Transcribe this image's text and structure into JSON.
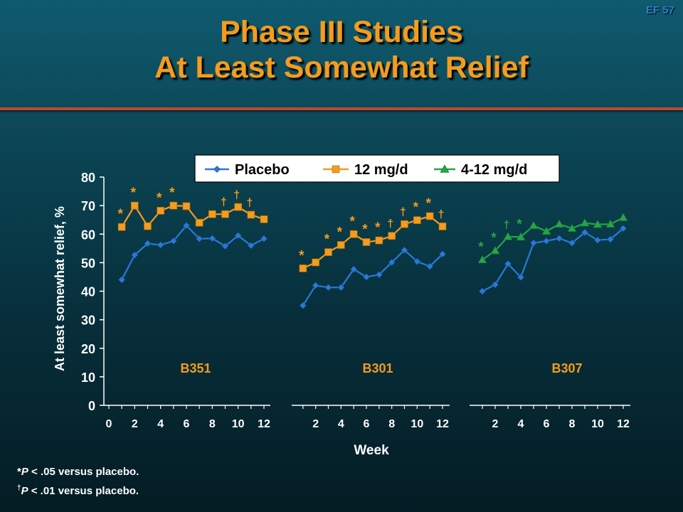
{
  "slide_code": "EF 57",
  "title_line1": "Phase III Studies",
  "title_line2": "At Least Somewhat Relief",
  "footnotes": {
    "line1": {
      "symbol": "*",
      "p": "P",
      "text": " < .05 versus placebo."
    },
    "line2": {
      "symbol": "†",
      "p": "P",
      "text": " < .01 versus placebo."
    }
  },
  "colors": {
    "placebo": "#2a7ad5",
    "mg12": "#f39c1e",
    "mg4_12": "#27a34a",
    "text": "#ffffff",
    "study_label": "#f39c1e"
  },
  "chart_data": {
    "type": "line",
    "ylabel": "At least somewhat relief, %",
    "xlabel": "Week",
    "ylim": [
      0,
      80
    ],
    "yticks": [
      0,
      10,
      20,
      30,
      40,
      50,
      60,
      70,
      80
    ],
    "xticks": [
      0,
      2,
      4,
      6,
      8,
      10,
      12
    ],
    "xticks_panels_2_3": [
      2,
      4,
      6,
      8,
      10,
      12
    ],
    "xlim": [
      0,
      12
    ],
    "legend": [
      "Placebo",
      "12 mg/d",
      "4-12 mg/d"
    ],
    "legend_position": "top",
    "grid": false,
    "panels": [
      {
        "study": "B351",
        "series": [
          {
            "name": "Placebo",
            "x": [
              1,
              2,
              3,
              4,
              5,
              6,
              7,
              8,
              9,
              10,
              11,
              12
            ],
            "y": [
              44,
              52.7,
              56.7,
              56.2,
              57.6,
              63,
              58.4,
              58.5,
              55.8,
              59.5,
              56,
              58.4
            ]
          },
          {
            "name": "12 mg/d",
            "x": [
              1,
              2,
              3,
              4,
              5,
              6,
              7,
              8,
              9,
              10,
              11,
              12
            ],
            "y": [
              62.5,
              70,
              62.8,
              68.2,
              70,
              69.8,
              64,
              67,
              67,
              69.5,
              66.8,
              65.2
            ],
            "annotations": [
              "*",
              "*",
              "",
              "*",
              "*",
              "",
              "",
              "",
              "†",
              "†",
              "†",
              ""
            ]
          }
        ]
      },
      {
        "study": "B301",
        "series": [
          {
            "name": "Placebo",
            "x": [
              1,
              2,
              3,
              4,
              5,
              6,
              7,
              8,
              9,
              10,
              11,
              12
            ],
            "y": [
              35,
              42,
              41.3,
              41.3,
              47.7,
              45,
              45.8,
              50.1,
              54.4,
              50.4,
              48.7,
              53
            ]
          },
          {
            "name": "12 mg/d",
            "x": [
              1,
              2,
              3,
              4,
              5,
              6,
              7,
              8,
              9,
              10,
              11,
              12
            ],
            "y": [
              48,
              50.1,
              53.7,
              56.2,
              60,
              57.2,
              57.8,
              59.4,
              63.5,
              64.9,
              66.3,
              62.7
            ],
            "annotations": [
              "*",
              "",
              "*",
              "*",
              "*",
              "*",
              "*",
              "†",
              "†",
              "*",
              "*",
              "†"
            ]
          }
        ]
      },
      {
        "study": "B307",
        "series": [
          {
            "name": "Placebo",
            "x": [
              1,
              2,
              3,
              4,
              5,
              6,
              7,
              8,
              9,
              10,
              11,
              12
            ],
            "y": [
              40,
              42.3,
              49.6,
              44.9,
              56.9,
              57.6,
              58.5,
              56.9,
              60.6,
              57.9,
              58.2,
              62
            ]
          },
          {
            "name": "4-12 mg/d",
            "x": [
              1,
              2,
              3,
              4,
              5,
              6,
              7,
              8,
              9,
              10,
              11,
              12
            ],
            "y": [
              51,
              54.2,
              59.1,
              59,
              63,
              61,
              63.5,
              62,
              63.9,
              63.4,
              63.5,
              65.8
            ],
            "annotations": [
              "*",
              "*",
              "†",
              "*",
              "",
              "",
              "",
              "",
              "",
              "",
              "",
              ""
            ]
          }
        ]
      }
    ]
  }
}
